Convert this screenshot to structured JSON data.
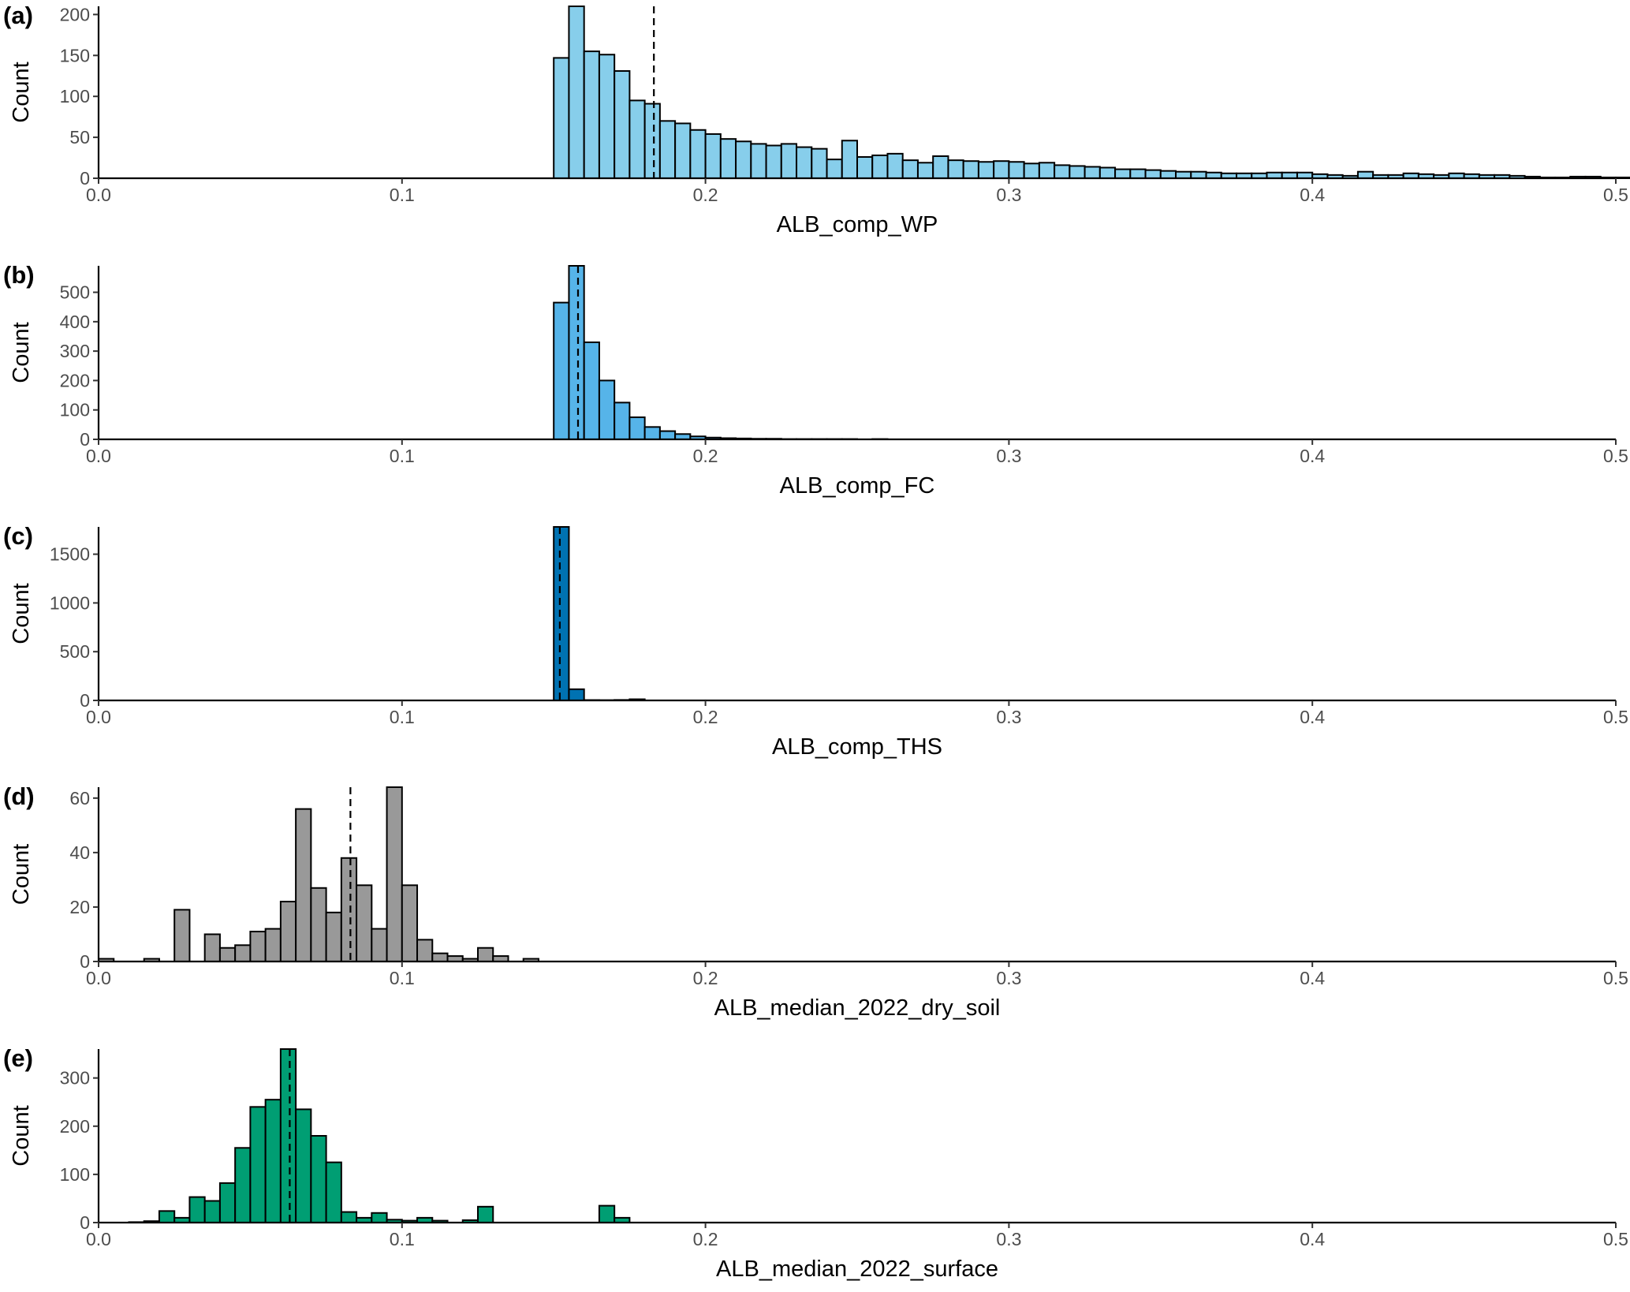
{
  "chart_data": [
    {
      "type": "bar",
      "panel": "(a)",
      "xlabel": "ALB_comp_WP",
      "ylabel": "Count",
      "xlim": [
        0,
        0.5
      ],
      "ylim": [
        0,
        210
      ],
      "xticks": [
        "0.0",
        "0.1",
        "0.2",
        "0.3",
        "0.4",
        "0.5"
      ],
      "yticks": [
        0,
        50,
        100,
        150,
        200
      ],
      "fill": "#87CEEB",
      "bin_width": 0.005,
      "bin_start": 0.15,
      "values": [
        147,
        210,
        155,
        151,
        131,
        95,
        91,
        70,
        67,
        59,
        54,
        48,
        45,
        42,
        40,
        42,
        38,
        36,
        23,
        46,
        26,
        28,
        30,
        22,
        19,
        27,
        22,
        21,
        20,
        21,
        20,
        18,
        19,
        16,
        15,
        14,
        13,
        11,
        11,
        10,
        9,
        8,
        8,
        7,
        6,
        6,
        6,
        7,
        7,
        7,
        5,
        4,
        3,
        8,
        4,
        4,
        6,
        5,
        4,
        6,
        5,
        4,
        4,
        3,
        2,
        1,
        1,
        2,
        2,
        1,
        1,
        2,
        1,
        1,
        4,
        4,
        5,
        1,
        1,
        1,
        1,
        2
      ],
      "median": 0.183
    },
    {
      "type": "bar",
      "panel": "(b)",
      "xlabel": "ALB_comp_FC",
      "ylabel": "Count",
      "xlim": [
        0,
        0.5
      ],
      "ylim": [
        0,
        590
      ],
      "xticks": [
        "0.0",
        "0.1",
        "0.2",
        "0.3",
        "0.4",
        "0.5"
      ],
      "yticks": [
        0,
        100,
        200,
        300,
        400,
        500
      ],
      "fill": "#56B4E9",
      "bin_width": 0.005,
      "bin_start": 0.15,
      "values": [
        465,
        590,
        330,
        200,
        125,
        75,
        42,
        28,
        18,
        10,
        6,
        4,
        3,
        2,
        2,
        1,
        1,
        1,
        1,
        1,
        0,
        1
      ],
      "median": 0.158
    },
    {
      "type": "bar",
      "panel": "(c)",
      "xlabel": "ALB_comp_THS",
      "ylabel": "Count",
      "xlim": [
        0,
        0.5
      ],
      "ylim": [
        0,
        1780
      ],
      "xticks": [
        "0.0",
        "0.1",
        "0.2",
        "0.3",
        "0.4",
        "0.5"
      ],
      "yticks": [
        0,
        500,
        1000,
        1500
      ],
      "fill": "#0072B2",
      "bin_width": 0.005,
      "bin_start": 0.15,
      "values": [
        1780,
        115,
        4,
        3,
        5,
        12
      ],
      "median": 0.152
    },
    {
      "type": "bar",
      "panel": "(d)",
      "xlabel": "ALB_median_2022_dry_soil",
      "ylabel": "Count",
      "xlim": [
        0,
        0.5
      ],
      "ylim": [
        0,
        64
      ],
      "xticks": [
        "0.0",
        "0.1",
        "0.2",
        "0.3",
        "0.4",
        "0.5"
      ],
      "yticks": [
        0,
        20,
        40,
        60
      ],
      "fill": "#999999",
      "bin_width": 0.005,
      "bin_start": 0.0,
      "values": [
        1,
        0,
        0,
        1,
        0,
        19,
        0,
        10,
        5,
        6,
        11,
        12,
        22,
        56,
        27,
        18,
        38,
        28,
        12,
        64,
        28,
        8,
        3,
        2,
        1,
        5,
        2,
        0,
        1,
        0
      ],
      "median": 0.083
    },
    {
      "type": "bar",
      "panel": "(e)",
      "xlabel": "ALB_median_2022_surface",
      "ylabel": "Count",
      "xlim": [
        0,
        0.5
      ],
      "ylim": [
        0,
        360
      ],
      "xticks": [
        "0.0",
        "0.1",
        "0.2",
        "0.3",
        "0.4",
        "0.5"
      ],
      "yticks": [
        0,
        100,
        200,
        300
      ],
      "fill": "#009E73",
      "bin_width": 0.005,
      "bin_start": 0.01,
      "values": [
        1,
        3,
        24,
        10,
        53,
        45,
        82,
        155,
        240,
        255,
        360,
        235,
        180,
        125,
        22,
        10,
        20,
        6,
        4,
        10,
        4,
        0,
        5,
        33,
        0,
        0,
        0,
        0,
        0,
        0,
        0,
        35,
        10
      ],
      "median": 0.063
    }
  ]
}
